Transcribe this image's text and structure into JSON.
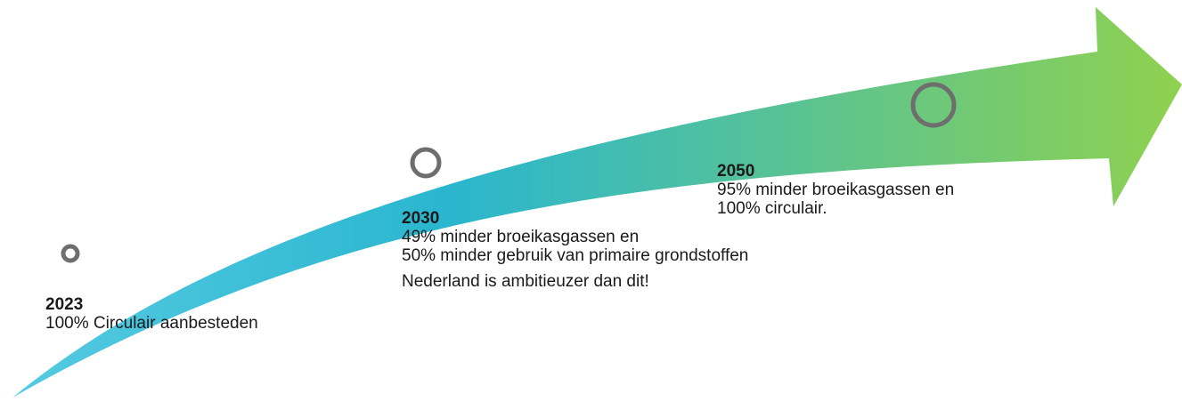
{
  "colors": {
    "arrow_start": "#56cbe2",
    "arrow_mid": "#2ab6cf",
    "arrow_end": "#8fd14f",
    "marker_ring": "#6e6e6e"
  },
  "milestones": [
    {
      "year": "2023",
      "lines": [
        "100% Circulair aanbesteden"
      ],
      "note": ""
    },
    {
      "year": "2030",
      "lines": [
        "49% minder broeikasgassen en",
        "50% minder gebruik van primaire grondstoffen"
      ],
      "note": "Nederland is ambitieuzer dan dit!"
    },
    {
      "year": "2050",
      "lines": [
        "95% minder broeikasgassen en",
        "100% circulair."
      ],
      "note": ""
    }
  ]
}
